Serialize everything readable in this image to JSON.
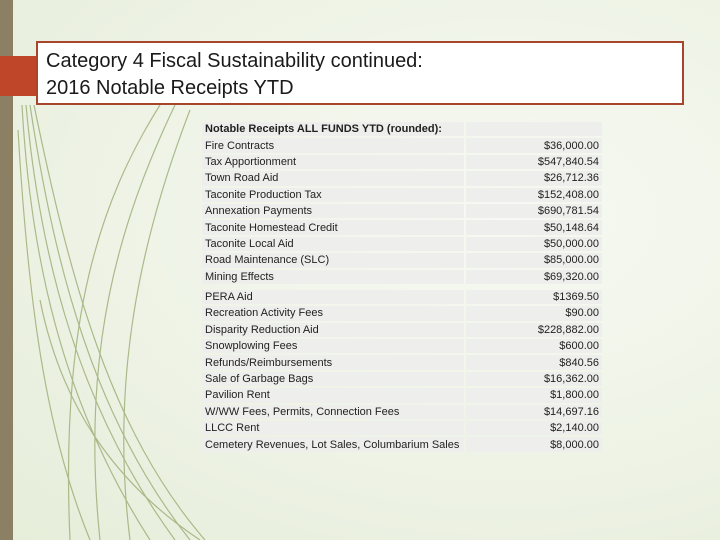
{
  "slide": {
    "title_line1": "Category 4 Fiscal Sustainability continued:",
    "title_line2": "2016 Notable Receipts YTD"
  },
  "table": {
    "header": "Notable Receipts ALL FUNDS YTD (rounded):",
    "group1": [
      {
        "label": "Fire Contracts",
        "amount": "$36,000.00"
      },
      {
        "label": "Tax Apportionment",
        "amount": "$547,840.54"
      },
      {
        "label": "Town Road Aid",
        "amount": "$26,712.36"
      },
      {
        "label": "Taconite Production Tax",
        "amount": "$152,408.00"
      },
      {
        "label": "Annexation Payments",
        "amount": "$690,781.54"
      },
      {
        "label": "Taconite Homestead Credit",
        "amount": "$50,148.64"
      },
      {
        "label": "Taconite Local Aid",
        "amount": "$50,000.00"
      },
      {
        "label": "Road Maintenance (SLC)",
        "amount": "$85,000.00"
      },
      {
        "label": "Mining Effects",
        "amount": "$69,320.00"
      }
    ],
    "group2": [
      {
        "label": "PERA Aid",
        "amount": "$1369.50"
      },
      {
        "label": "Recreation Activity Fees",
        "amount": "$90.00"
      },
      {
        "label": "Disparity Reduction Aid",
        "amount": "$228,882.00"
      },
      {
        "label": "Snowplowing Fees",
        "amount": "$600.00"
      },
      {
        "label": "Refunds/Reimbursements",
        "amount": "$840.56"
      },
      {
        "label": "Sale of Garbage Bags",
        "amount": "$16,362.00"
      },
      {
        "label": "Pavilion Rent",
        "amount": "$1,800.00"
      },
      {
        "label": "W/WW Fees, Permits, Connection Fees",
        "amount": "$14,697.16"
      },
      {
        "label": "LLCC Rent",
        "amount": "$2,140.00"
      },
      {
        "label": "Cemetery Revenues, Lot Sales, Columbarium Sales",
        "amount": "$8,000.00"
      }
    ]
  },
  "colors": {
    "background": "#eef3e6",
    "accent_red": "#c0462a",
    "side_bar": "#8b8063",
    "title_border": "#a8462c",
    "cell_bg": "#eeeeec"
  }
}
